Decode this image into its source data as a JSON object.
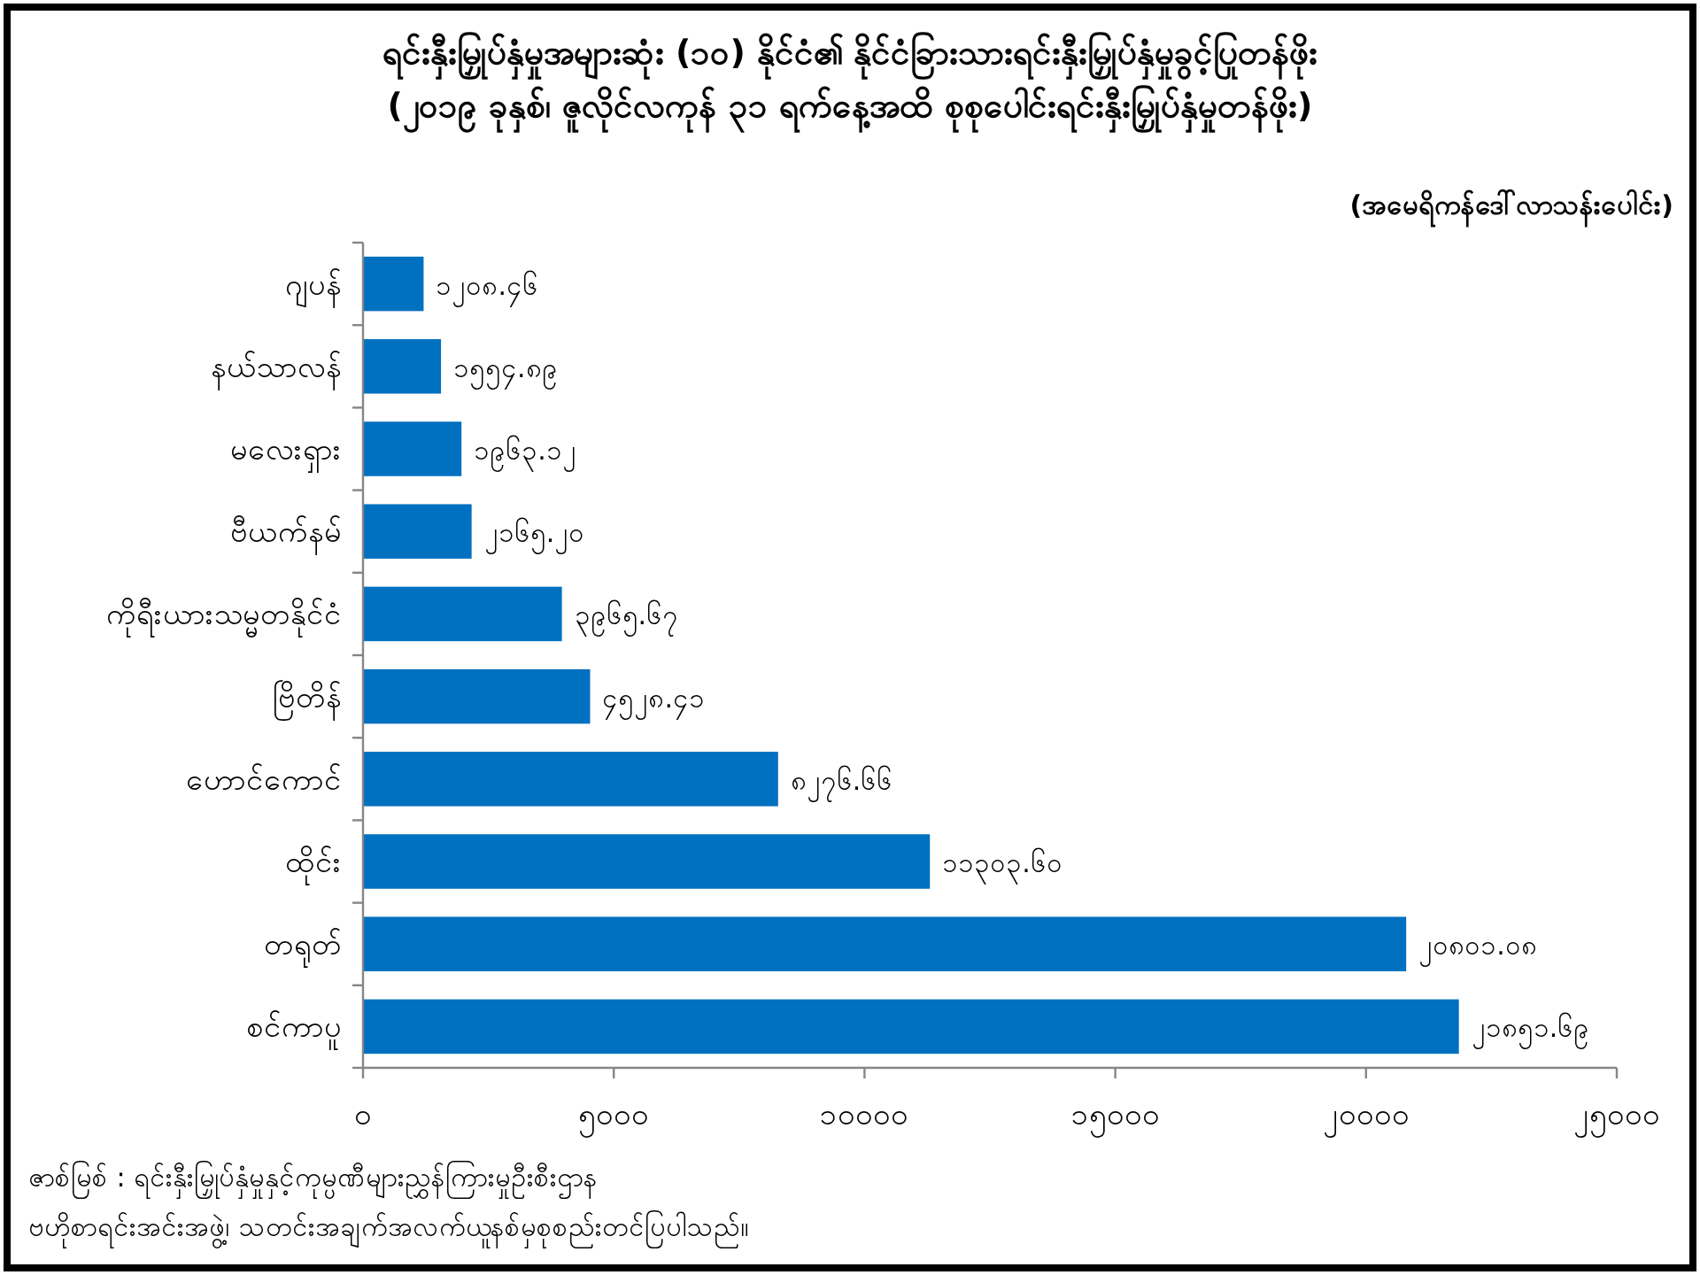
{
  "chart_data": {
    "type": "bar",
    "orientation": "horizontal",
    "title": "ရင်းနှီးမြှုပ်နှံမှုအများဆုံး (၁၀) နိုင်ငံ၏ နိုင်ငံခြားသားရင်းနှီးမြှုပ်နှံမှုခွင့်ပြုတန်ဖိုး",
    "subtitle": "(၂၀၁၉ ခုနှစ်၊ ဇူလိုင်လကုန် ၃၁ ရက်နေ့အထိ စုစုပေါင်းရင်းနှီးမြှုပ်နှံမှုတန်ဖိုး)",
    "annotations": [
      "(အမေရိကန်ဒေါ်လာသန်းပေါင်း)",
      "ဇာစ်မြစ် : ရင်းနှီးမြှုပ်နှံမှုနှင့်ကုမ္ပဏီများညွှန်ကြားမှုဦးစီးဌာန\nဗဟိုစာရင်းအင်းအဖွဲ့၊ သတင်းအချက်အလက်ယူနစ်မှစုစည်းတင်ပြပါသည်။"
    ],
    "categories": [
      "ဂျပန်",
      "နယ်သာလန်",
      "မလေးရှား",
      "ဗီယက်နမ်",
      "ကိုရီးယားသမ္မတနိုင်ငံ",
      "ဗြိတိန်",
      "ဟောင်ကောင်",
      "ထိုင်း",
      "တရုတ်",
      "စင်ကာပူ"
    ],
    "values": [
      1208.46,
      1554.89,
      1963.12,
      2165.2,
      3965.67,
      4528.41,
      8276.66,
      11303.6,
      20801.08,
      21851.69
    ],
    "value_labels": [
      "၁၂၀၈.၄၆",
      "၁၅၅၄.၈၉",
      "၁၉၆၃.၁၂",
      "၂၁၆၅.၂၀",
      "၃၉၆၅.၆၇",
      "၄၅၂၈.၄၁",
      "၈၂၇၆.၆၆",
      "၁၁၃၀၃.၆၀",
      "၂၀၈၀၁.၀၈",
      "၂၁၈၅၁.၆၉"
    ],
    "color": "#0070c0",
    "xlim": [
      0,
      25000
    ],
    "xticks": [
      {
        "value": 0,
        "label": "၀"
      },
      {
        "value": 5000,
        "label": "၅၀၀၀"
      },
      {
        "value": 10000,
        "label": "၁၀၀၀၀"
      },
      {
        "value": 15000,
        "label": "၁၅၀၀၀"
      },
      {
        "value": 20000,
        "label": "၂၀၀၀၀"
      },
      {
        "value": 25000,
        "label": "၂၅၀၀၀"
      }
    ],
    "grid": false
  }
}
